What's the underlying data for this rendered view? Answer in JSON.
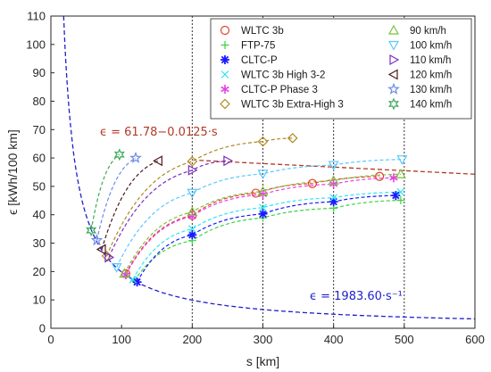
{
  "chart_data": {
    "type": "scatter",
    "xlabel": "s [km]",
    "ylabel": "ϵ [kWh/100 km]",
    "xlim": [
      0,
      600
    ],
    "ylim": [
      0,
      110
    ],
    "xticks": [
      "0",
      "100",
      "200",
      "300",
      "400",
      "500",
      "600"
    ],
    "yticks": [
      "0",
      "10",
      "20",
      "30",
      "40",
      "50",
      "60",
      "70",
      "80",
      "90",
      "100",
      "110"
    ],
    "grid": "vertical-dotted",
    "legend_position": "top-right",
    "vertical_lines_x": [
      200,
      300,
      400,
      500
    ],
    "series": [
      {
        "name": "WLTC 3b",
        "marker": "circle",
        "color": "#e8412c",
        "points": [
          [
            106,
            19.2
          ],
          [
            200,
            39.8
          ],
          [
            290,
            47.6
          ],
          [
            370,
            51.0
          ],
          [
            465,
            53.5
          ]
        ]
      },
      {
        "name": "FTP-75",
        "marker": "plus",
        "color": "#3bd43b",
        "points": [
          [
            118,
            16.7
          ],
          [
            200,
            30.9
          ],
          [
            300,
            38.9
          ],
          [
            400,
            42.3
          ],
          [
            495,
            45.1
          ]
        ]
      },
      {
        "name": "CLTC-P",
        "marker": "asterisk",
        "color": "#1a1aff",
        "points": [
          [
            122,
            16.3
          ],
          [
            200,
            32.9
          ],
          [
            300,
            40.3
          ],
          [
            400,
            44.6
          ],
          [
            488,
            46.8
          ]
        ]
      },
      {
        "name": "WLTC 3b High 3-2",
        "marker": "x",
        "color": "#2ee6f2",
        "points": [
          [
            116,
            17.2
          ],
          [
            200,
            35.0
          ],
          [
            300,
            42.5
          ],
          [
            400,
            46.0
          ],
          [
            495,
            48.0
          ]
        ]
      },
      {
        "name": "CLTC-P Phase 3",
        "marker": "star6",
        "color": "#e641e6",
        "points": [
          [
            106,
            18.8
          ],
          [
            200,
            39.5
          ],
          [
            300,
            47.2
          ],
          [
            400,
            50.8
          ],
          [
            485,
            53.0
          ]
        ]
      },
      {
        "name": "WLTC 3b Extra-High 3",
        "marker": "diamond",
        "color": "#b08a21",
        "points": [
          [
            79,
            25.5
          ],
          [
            200,
            58.8
          ],
          [
            300,
            65.8
          ],
          [
            342,
            67.0
          ]
        ]
      },
      {
        "name": "90 km/h",
        "marker": "triangle-up",
        "color": "#7fbf3f",
        "points": [
          [
            104,
            19.3
          ],
          [
            200,
            41.0
          ],
          [
            300,
            48.2
          ],
          [
            400,
            52.0
          ],
          [
            495,
            54.3
          ]
        ]
      },
      {
        "name": "100 km/h",
        "marker": "triangle-down",
        "color": "#5cc8ff",
        "points": [
          [
            93,
            21.5
          ],
          [
            200,
            47.7
          ],
          [
            300,
            54.4
          ],
          [
            400,
            57.5
          ],
          [
            497,
            59.5
          ]
        ]
      },
      {
        "name": "110 km/h",
        "marker": "triangle-right",
        "color": "#7b2fbe",
        "points": [
          [
            82,
            25.0
          ],
          [
            200,
            55.7
          ],
          [
            250,
            59.0
          ]
        ]
      },
      {
        "name": "120 km/h",
        "marker": "triangle-left",
        "color": "#4d1a1a",
        "points": [
          [
            72,
            27.8
          ],
          [
            152,
            59.0
          ]
        ]
      },
      {
        "name": "130 km/h",
        "marker": "star5",
        "color": "#6c8ce6",
        "points": [
          [
            65,
            31.0
          ],
          [
            120,
            60.0
          ]
        ]
      },
      {
        "name": "140 km/h",
        "marker": "star6outline",
        "color": "#3fa85c",
        "points": [
          [
            57,
            34.5
          ],
          [
            97,
            61.2
          ]
        ]
      }
    ],
    "fits": [
      {
        "label": "ϵ = 61.78−0.0125·s",
        "color": "#b33a26",
        "type": "linear",
        "a": 61.78,
        "b": -0.0125
      },
      {
        "label": "ϵ = 1983.60·s⁻¹",
        "color": "#1f1fcc",
        "type": "reciprocal",
        "k": 1983.6
      }
    ]
  }
}
